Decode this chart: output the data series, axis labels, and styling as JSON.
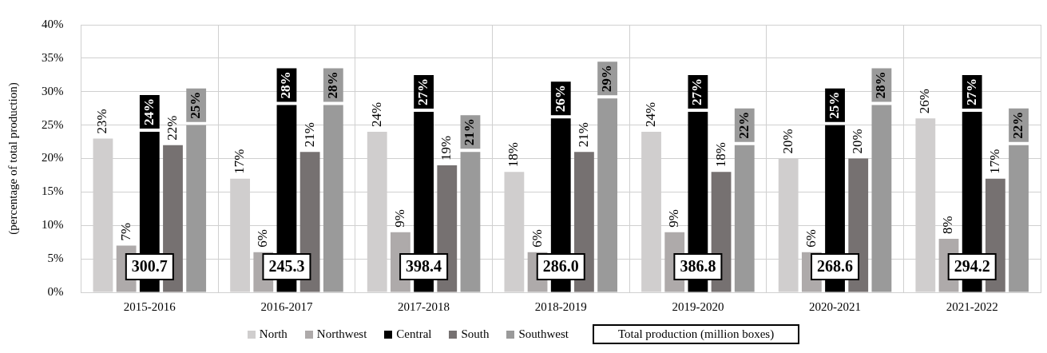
{
  "chart_data": {
    "type": "bar",
    "ylabel": "(percentage of total production)",
    "categories": [
      "2015-2016",
      "2016-2017",
      "2017-2018",
      "2018-2019",
      "2019-2020",
      "2020-2021",
      "2021-2022"
    ],
    "series": [
      {
        "name": "North",
        "color": "#d0cece",
        "values": [
          23,
          17,
          24,
          18,
          24,
          20,
          26
        ],
        "value_labels": [
          "23%",
          "17%",
          "24%",
          "18%",
          "24%",
          "20%",
          "26%"
        ]
      },
      {
        "name": "Northwest",
        "color": "#aeaaaa",
        "values": [
          7,
          6,
          9,
          6,
          9,
          6,
          8
        ],
        "value_labels": [
          "7%",
          "6%",
          "9%",
          "6%",
          "9%",
          "6%",
          "8%"
        ]
      },
      {
        "name": "Central",
        "color": "#000000",
        "values": [
          24,
          28,
          27,
          26,
          27,
          25,
          27
        ],
        "value_labels": [
          "24%",
          "28%",
          "27%",
          "26%",
          "27%",
          "25%",
          "27%"
        ]
      },
      {
        "name": "South",
        "color": "#767171",
        "values": [
          22,
          21,
          19,
          21,
          18,
          20,
          17
        ],
        "value_labels": [
          "22%",
          "21%",
          "19%",
          "21%",
          "18%",
          "20%",
          "17%"
        ]
      },
      {
        "name": "Southwest",
        "color": "#9a9a9a",
        "values": [
          25,
          28,
          21,
          29,
          22,
          28,
          22
        ],
        "value_labels": [
          "25%",
          "28%",
          "21%",
          "29%",
          "22%",
          "28%",
          "22%"
        ]
      }
    ],
    "ylim": [
      0,
      40
    ],
    "yticks": [
      {
        "value": 0,
        "label": "0%"
      },
      {
        "value": 5,
        "label": "5%"
      },
      {
        "value": 10,
        "label": "10%"
      },
      {
        "value": 15,
        "label": "15%"
      },
      {
        "value": 20,
        "label": "20%"
      },
      {
        "value": 25,
        "label": "25%"
      },
      {
        "value": 30,
        "label": "30%"
      },
      {
        "value": 35,
        "label": "35%"
      },
      {
        "value": 40,
        "label": "40%"
      }
    ],
    "annotations": [
      "300.7",
      "245.3",
      "398.4",
      "286.0",
      "386.8",
      "268.6",
      "294.2",
      "Total production (million boxes)"
    ],
    "grid": true,
    "legend": "bottom"
  }
}
